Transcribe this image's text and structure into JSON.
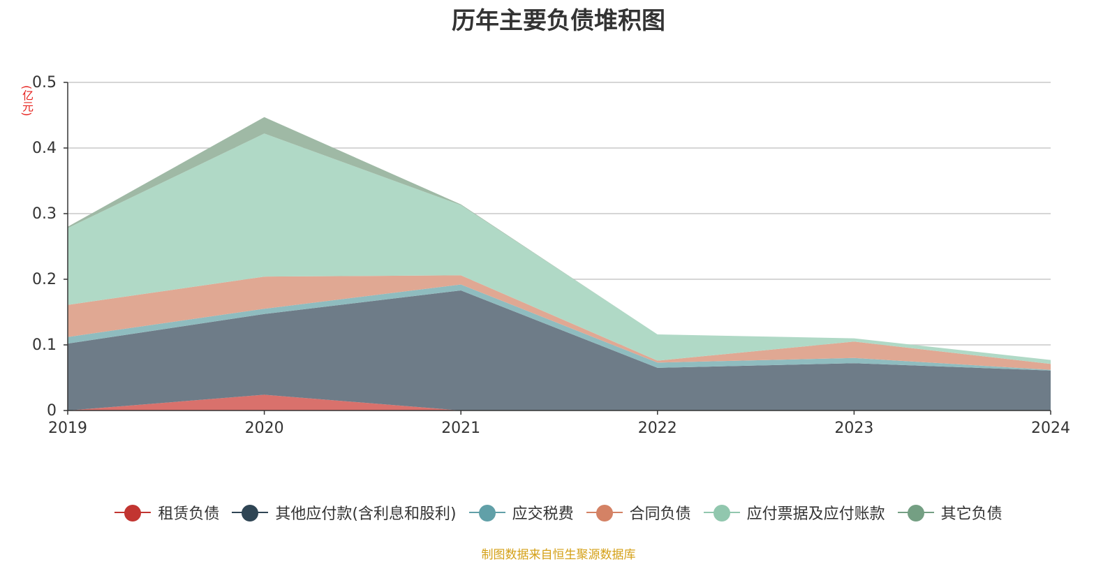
{
  "title": "历年主要负债堆积图",
  "source_note": "制图数据来自恒生聚源数据库",
  "chart_data": {
    "type": "area",
    "stacked": true,
    "title": "历年主要负债堆积图",
    "ylabel": "(亿元)",
    "xlabel": "",
    "categories": [
      "2019",
      "2020",
      "2021",
      "2022",
      "2023",
      "2024"
    ],
    "y_ticks": [
      "0",
      "0.1",
      "0.2",
      "0.3",
      "0.4",
      "0.5"
    ],
    "ylim": [
      0,
      0.5
    ],
    "grid": true,
    "legend_position": "bottom",
    "series": [
      {
        "name": "租赁负债",
        "color": "#c23531",
        "fill": "#d9716c",
        "values": [
          0,
          0.024,
          0,
          0,
          0,
          0
        ]
      },
      {
        "name": "其他应付款(含利息和股利)",
        "color": "#2f4554",
        "fill": "#6e7c88",
        "values": [
          0.102,
          0.123,
          0.183,
          0.065,
          0.072,
          0.061
        ]
      },
      {
        "name": "应交税费",
        "color": "#61a0a8",
        "fill": "#8fbcbf",
        "values": [
          0.01,
          0.008,
          0.009,
          0.008,
          0.008,
          0.001
        ]
      },
      {
        "name": "合同负债",
        "color": "#d48265",
        "fill": "#e0a893",
        "values": [
          0.049,
          0.049,
          0.014,
          0.003,
          0.025,
          0.009
        ]
      },
      {
        "name": "应付票据及应付账款",
        "color": "#91c7ae",
        "fill": "#b0d9c6",
        "values": [
          0.117,
          0.218,
          0.107,
          0.04,
          0.005,
          0.006
        ]
      },
      {
        "name": "其它负债",
        "color": "#749f83",
        "fill": "#9fb9a5",
        "values": [
          0.002,
          0.025,
          0.001,
          0,
          0,
          0
        ]
      }
    ]
  }
}
